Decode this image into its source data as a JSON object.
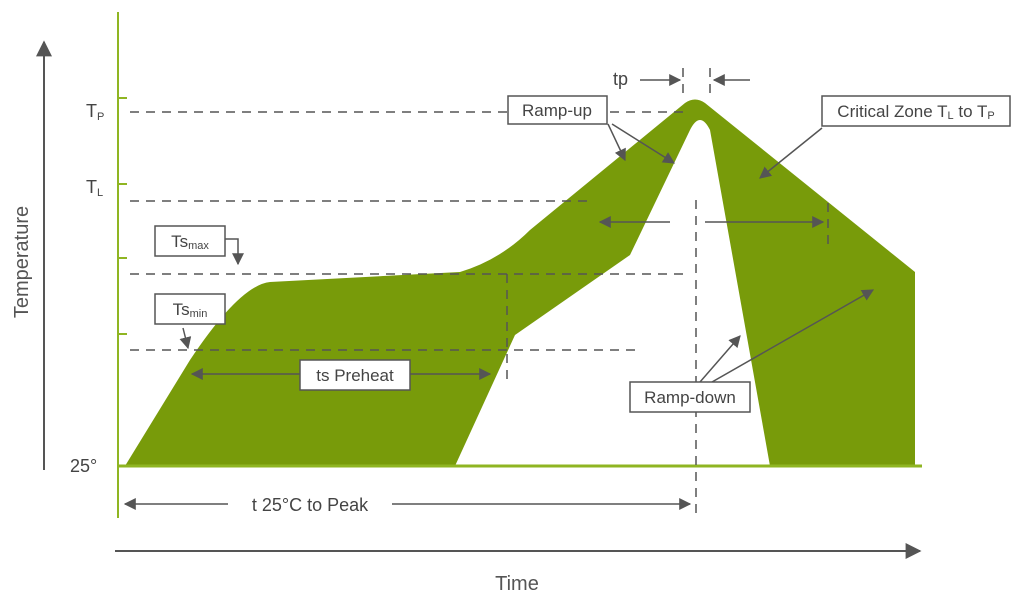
{
  "axes": {
    "x_label": "Time",
    "y_label": "Temperature"
  },
  "y_ticks": {
    "tp": {
      "main": "T",
      "sub": "P"
    },
    "tl": {
      "main": "T",
      "sub": "L"
    },
    "t25": "25°"
  },
  "labels": {
    "tp_marker": "tp",
    "ramp_up": "Ramp-up",
    "ramp_down": "Ramp-down",
    "ts_preheat": "ts Preheat",
    "t25_to_peak": "t 25°C to Peak",
    "critical_zone": {
      "a": "Critical Zone T",
      "a_sub": "L",
      "b": " to T",
      "b_sub": "P"
    },
    "ts_max": {
      "main": "Ts",
      "sub": "max"
    },
    "ts_min": {
      "main": "Ts",
      "sub": "min"
    }
  },
  "colors": {
    "profile_fill": "#789b0a",
    "axis_green": "#8fb522",
    "line_gray": "#555555",
    "box_border": "#555555"
  }
}
